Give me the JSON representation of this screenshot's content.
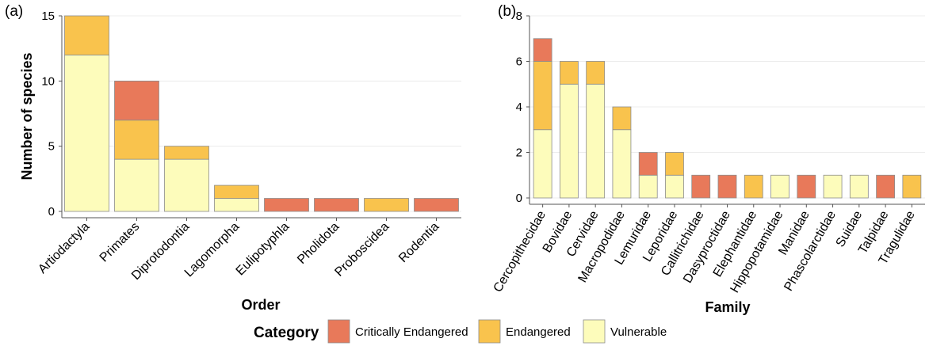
{
  "colors": {
    "Critically Endangered": "#e8795a",
    "Endangered": "#f9c34d",
    "Vulnerable": "#fdfcbb"
  },
  "legend": {
    "title": "Category",
    "items": [
      "Critically Endangered",
      "Endangered",
      "Vulnerable"
    ]
  },
  "chart_data": [
    {
      "type": "bar",
      "stacked": true,
      "panel_label": "(a)",
      "xlabel": "Order",
      "ylabel": "Number of species",
      "ylim": [
        0,
        15
      ],
      "yticks": [
        0,
        5,
        10,
        15
      ],
      "grid": true,
      "categories": [
        "Artiodactyla",
        "Primates",
        "Diprotodontia",
        "Lagomorpha",
        "Eulipotyphla",
        "Pholidota",
        "Proboscidea",
        "Rodentia"
      ],
      "series": [
        {
          "name": "Vulnerable",
          "values": [
            12,
            4,
            4,
            1,
            0,
            0,
            0,
            0
          ]
        },
        {
          "name": "Endangered",
          "values": [
            3,
            3,
            1,
            1,
            0,
            0,
            1,
            0
          ]
        },
        {
          "name": "Critically Endangered",
          "values": [
            0,
            3,
            0,
            0,
            1,
            1,
            0,
            1
          ]
        }
      ]
    },
    {
      "type": "bar",
      "stacked": true,
      "panel_label": "(b)",
      "xlabel": "Family",
      "ylabel": "",
      "ylim": [
        0,
        8
      ],
      "yticks": [
        0,
        2,
        4,
        6,
        8
      ],
      "grid": true,
      "categories": [
        "Cercopithecidae",
        "Bovidae",
        "Cervidae",
        "Macropodidae",
        "Lemuridae",
        "Leporidae",
        "Callitrichidae",
        "Dasyproctidae",
        "Elephantidae",
        "Hippopotamidae",
        "Manidae",
        "Phascolarctidae",
        "Suidae",
        "Talpidae",
        "Tragulidae"
      ],
      "series": [
        {
          "name": "Vulnerable",
          "values": [
            3,
            5,
            5,
            3,
            1,
            1,
            0,
            0,
            0,
            1,
            0,
            1,
            1,
            0,
            0
          ]
        },
        {
          "name": "Endangered",
          "values": [
            3,
            1,
            1,
            1,
            0,
            1,
            0,
            0,
            1,
            0,
            0,
            0,
            0,
            0,
            1
          ]
        },
        {
          "name": "Critically Endangered",
          "values": [
            1,
            0,
            0,
            0,
            1,
            0,
            1,
            1,
            0,
            0,
            1,
            0,
            0,
            1,
            0
          ]
        }
      ]
    }
  ]
}
